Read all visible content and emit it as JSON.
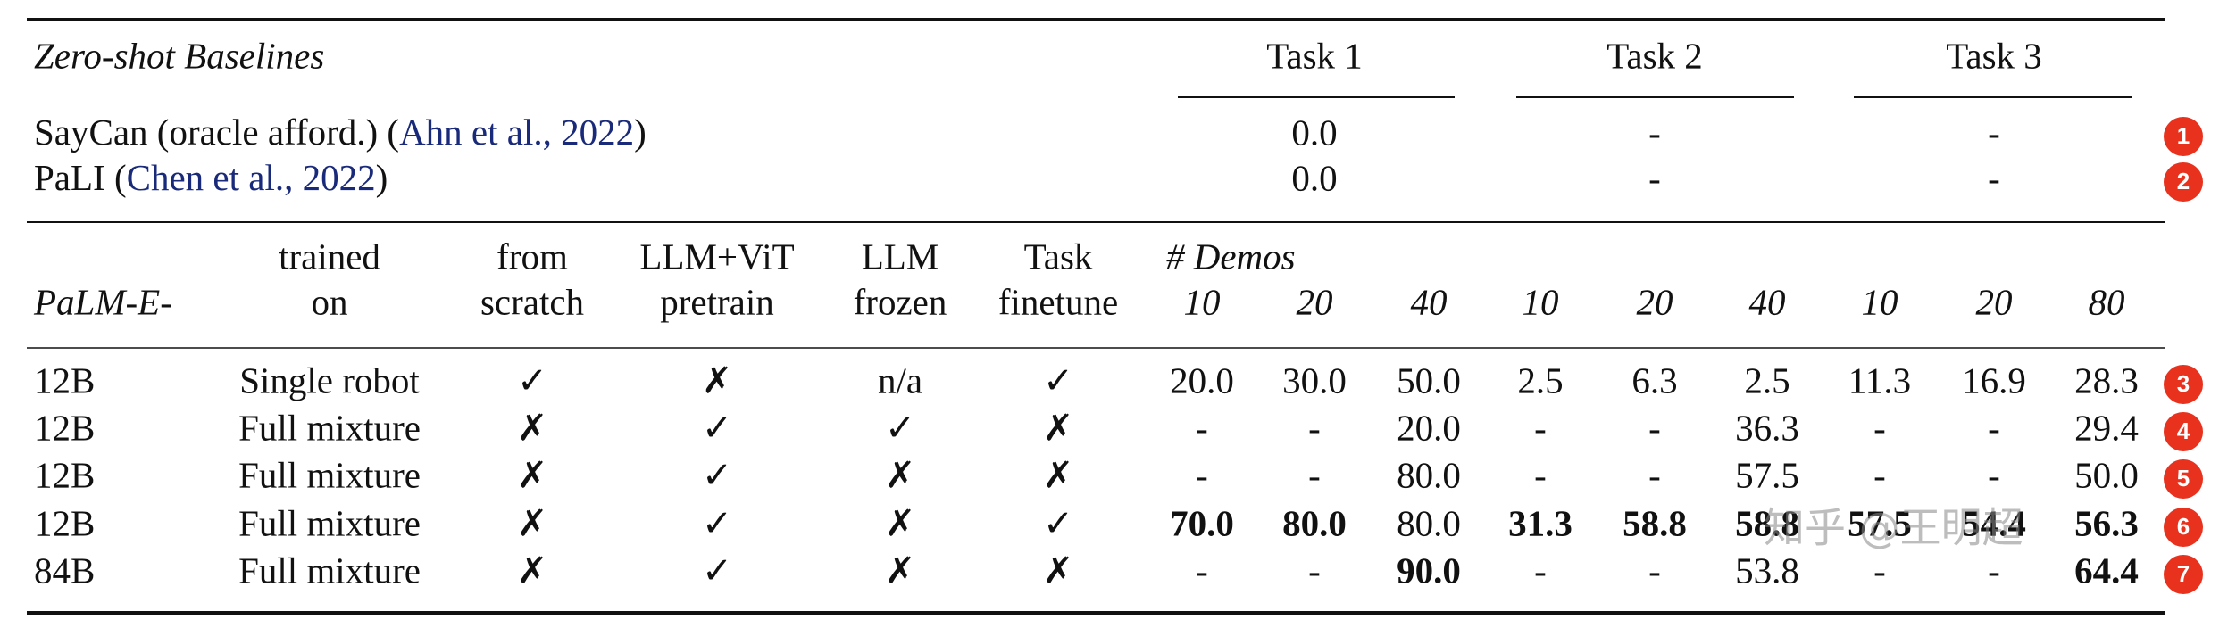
{
  "header": {
    "title": "Zero-shot Baselines",
    "tasks": [
      "Task 1",
      "Task 2",
      "Task 3"
    ]
  },
  "baselines": [
    {
      "name": "SayCan (oracle afford.) (",
      "cite": "Ahn et al., 2022",
      "close": ")",
      "values": [
        "0.0",
        "-",
        "-"
      ],
      "badge": "1"
    },
    {
      "name": "PaLI (",
      "cite": "Chen et al., 2022",
      "close": ")",
      "values": [
        "0.0",
        "-",
        "-"
      ],
      "badge": "2"
    }
  ],
  "columns": {
    "model": "PaLM-E-",
    "trained": [
      "trained",
      "on"
    ],
    "scratch": [
      "from",
      "scratch"
    ],
    "pretrain": [
      "LLM+ViT",
      "pretrain"
    ],
    "frozen": [
      "LLM",
      "frozen"
    ],
    "finetune": [
      "Task",
      "finetune"
    ],
    "demos_label": "# Demos",
    "demos": [
      "10",
      "20",
      "40",
      "10",
      "20",
      "40",
      "10",
      "20",
      "80"
    ]
  },
  "rows": [
    {
      "model": "12B",
      "trained": "Single robot",
      "flags": [
        "✓",
        "✗",
        "n/a",
        "✓"
      ],
      "values": [
        "20.0",
        "30.0",
        "50.0",
        "2.5",
        "6.3",
        "2.5",
        "11.3",
        "16.9",
        "28.3"
      ],
      "bold": [
        false,
        false,
        false,
        false,
        false,
        false,
        false,
        false,
        false
      ],
      "badge": "3"
    },
    {
      "model": "12B",
      "trained": "Full mixture",
      "flags": [
        "✗",
        "✓",
        "✓",
        "✗"
      ],
      "values": [
        "-",
        "-",
        "20.0",
        "-",
        "-",
        "36.3",
        "-",
        "-",
        "29.4"
      ],
      "bold": [
        false,
        false,
        false,
        false,
        false,
        false,
        false,
        false,
        false
      ],
      "badge": "4"
    },
    {
      "model": "12B",
      "trained": "Full mixture",
      "flags": [
        "✗",
        "✓",
        "✗",
        "✗"
      ],
      "values": [
        "-",
        "-",
        "80.0",
        "-",
        "-",
        "57.5",
        "-",
        "-",
        "50.0"
      ],
      "bold": [
        false,
        false,
        false,
        false,
        false,
        false,
        false,
        false,
        false
      ],
      "badge": "5"
    },
    {
      "model": "12B",
      "trained": "Full mixture",
      "flags": [
        "✗",
        "✓",
        "✗",
        "✓"
      ],
      "values": [
        "70.0",
        "80.0",
        "80.0",
        "31.3",
        "58.8",
        "58.8",
        "57.5",
        "54.4",
        "56.3"
      ],
      "bold": [
        true,
        true,
        false,
        true,
        true,
        true,
        true,
        true,
        true
      ],
      "badge": "6"
    },
    {
      "model": "84B",
      "trained": "Full mixture",
      "flags": [
        "✗",
        "✓",
        "✗",
        "✗"
      ],
      "values": [
        "-",
        "-",
        "90.0",
        "-",
        "-",
        "53.8",
        "-",
        "-",
        "64.4"
      ],
      "bold": [
        false,
        false,
        true,
        false,
        false,
        false,
        false,
        false,
        true
      ],
      "badge": "7"
    }
  ],
  "watermark": "知乎 @王明超"
}
